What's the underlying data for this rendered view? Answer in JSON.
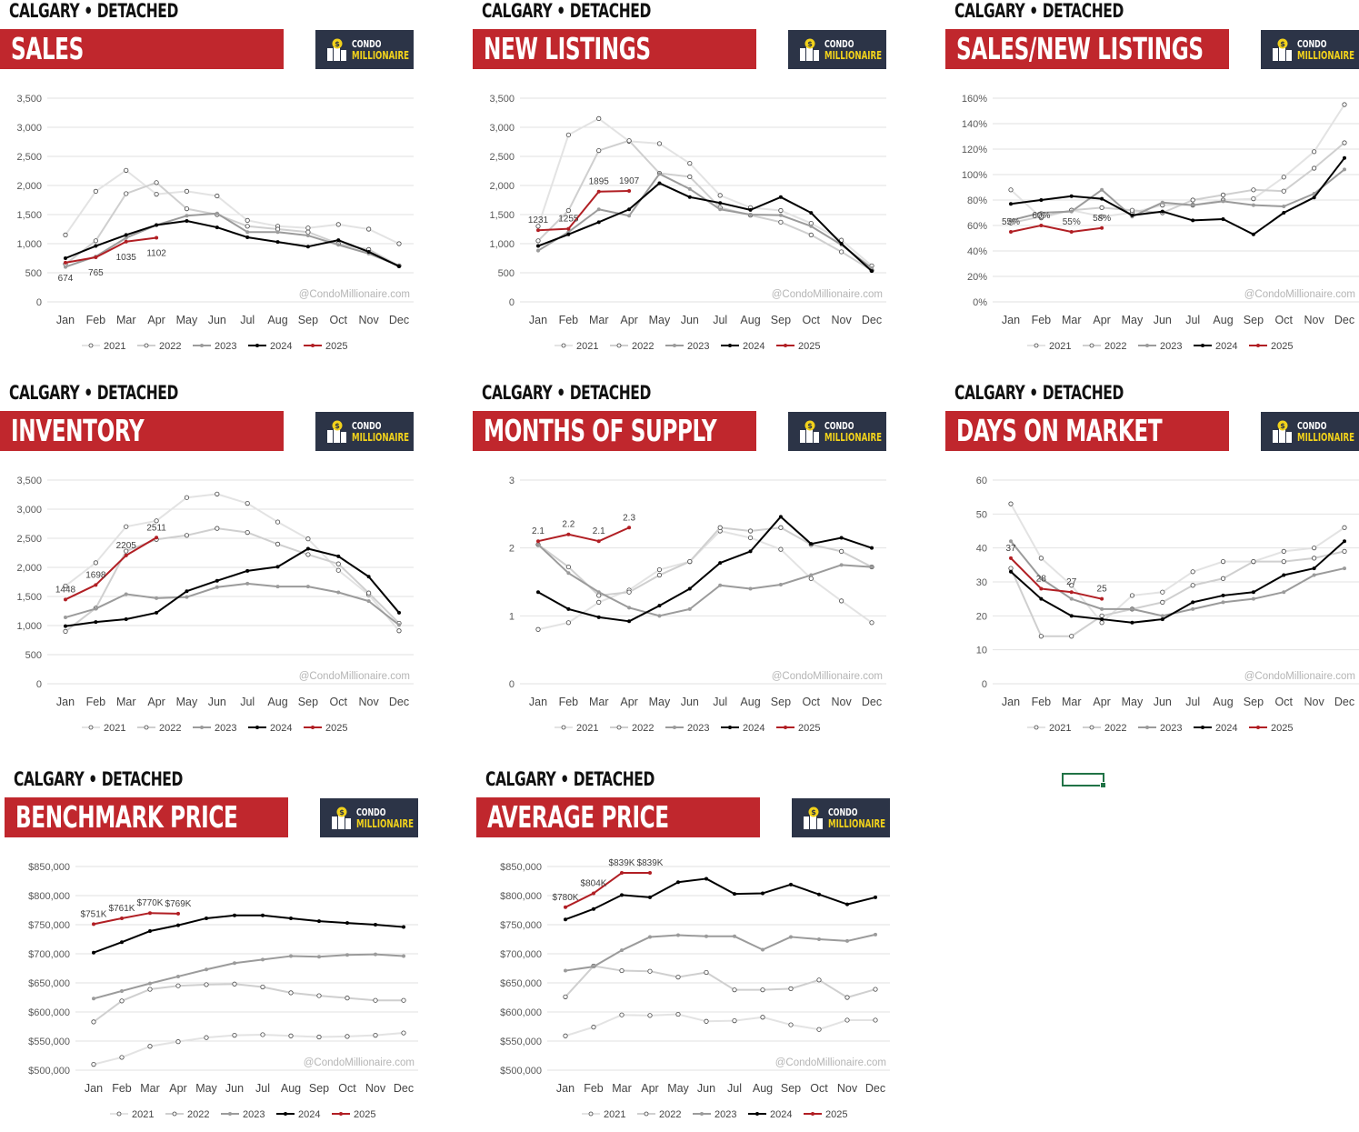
{
  "months": [
    "Jan",
    "Feb",
    "Mar",
    "Apr",
    "May",
    "Jun",
    "Jul",
    "Aug",
    "Sep",
    "Oct",
    "Nov",
    "Dec"
  ],
  "legend_years": [
    "2021",
    "2022",
    "2023",
    "2024",
    "2025"
  ],
  "watermark": "@CondoMillionaire.com",
  "logo": {
    "line1": "CONDO",
    "line2": "MILLIONAIRE"
  },
  "colors": {
    "banner": "#c0272d",
    "logo_bg": "#2c3447",
    "logo_accent": "#f2d21b",
    "y2021": "#e3e3e3",
    "y2022": "#cfcfcf",
    "y2023": "#9b9b9b",
    "y2024": "#000000",
    "y2025": "#b11f24"
  },
  "panels": [
    {
      "city": "CALGARY • DETACHED",
      "title": "SALES",
      "chart_data": {
        "type": "line",
        "ylim": [
          0,
          3500
        ],
        "yticks": [
          "0",
          "500",
          "1,000",
          "1,500",
          "2,000",
          "2,500",
          "3,000",
          "3,500"
        ],
        "series": [
          {
            "name": "2021",
            "values": [
              1150,
              1900,
              2260,
              1850,
              1900,
              1820,
              1400,
              1300,
              1270,
              1330,
              1250,
              1000
            ]
          },
          {
            "name": "2022",
            "values": [
              650,
              1050,
              1860,
              2050,
              1600,
              1500,
              1300,
              1250,
              1200,
              1000,
              900,
              620
            ]
          },
          {
            "name": "2023",
            "values": [
              600,
              780,
              1100,
              1320,
              1480,
              1520,
              1200,
              1200,
              1140,
              980,
              830,
              620
            ]
          },
          {
            "name": "2024",
            "values": [
              750,
              960,
              1150,
              1320,
              1390,
              1280,
              1110,
              1030,
              950,
              1060,
              860,
              610
            ]
          },
          {
            "name": "2025",
            "values": [
              674,
              765,
              1035,
              1102
            ],
            "labels": [
              "674",
              "765",
              "1035",
              "1102"
            ]
          }
        ]
      }
    },
    {
      "city": "CALGARY • DETACHED",
      "title": "NEW LISTINGS",
      "chart_data": {
        "type": "line",
        "ylim": [
          0,
          3500
        ],
        "yticks": [
          "0",
          "500",
          "1,000",
          "1,500",
          "2,000",
          "2,500",
          "3,000",
          "3,500"
        ],
        "series": [
          {
            "name": "2021",
            "values": [
              1300,
              2870,
              3150,
              2760,
              2720,
              2380,
              1830,
              1620,
              1570,
              1350,
              1060,
              620
            ]
          },
          {
            "name": "2022",
            "values": [
              1050,
              1570,
              2600,
              2770,
              2210,
              2150,
              1620,
              1490,
              1370,
              1150,
              860,
              540
            ]
          },
          {
            "name": "2023",
            "values": [
              880,
              1200,
              1590,
              1480,
              2200,
              1940,
              1590,
              1500,
              1490,
              1300,
              980,
              580
            ]
          },
          {
            "name": "2024",
            "values": [
              960,
              1160,
              1370,
              1590,
              2040,
              1800,
              1700,
              1580,
              1800,
              1530,
              1000,
              530
            ]
          },
          {
            "name": "2025",
            "values": [
              1231,
              1255,
              1895,
              1907
            ],
            "labels": [
              "1231",
              "1255",
              "1895",
              "1907"
            ]
          }
        ]
      }
    },
    {
      "city": "CALGARY • DETACHED",
      "title": "SALES/NEW LISTINGS",
      "chart_data": {
        "type": "line",
        "ylim": [
          0,
          160
        ],
        "yticks": [
          "0%",
          "20%",
          "40%",
          "60%",
          "80%",
          "100%",
          "120%",
          "140%",
          "160%"
        ],
        "series": [
          {
            "name": "2021",
            "values": [
              88,
              66,
              72,
              67,
              70,
              76,
              76,
              80,
              81,
              98,
              118,
              155
            ]
          },
          {
            "name": "2022",
            "values": [
              62,
              67,
              72,
              74,
              72,
              70,
              80,
              84,
              88,
              87,
              105,
              125
            ]
          },
          {
            "name": "2023",
            "values": [
              64,
              70,
              71,
              88,
              67,
              78,
              76,
              79,
              76,
              75,
              85,
              104
            ]
          },
          {
            "name": "2024",
            "values": [
              77,
              80,
              83,
              81,
              68,
              71,
              64,
              65,
              53,
              70,
              82,
              113
            ]
          },
          {
            "name": "2025",
            "values": [
              55,
              60,
              55,
              58
            ],
            "labels": [
              "55%",
              "60%",
              "55%",
              "58%"
            ]
          }
        ]
      }
    },
    {
      "city": "CALGARY • DETACHED",
      "title": "INVENTORY",
      "chart_data": {
        "type": "line",
        "ylim": [
          0,
          3500
        ],
        "yticks": [
          "0",
          "500",
          "1,000",
          "1,500",
          "2,000",
          "2,500",
          "3,000",
          "3,500"
        ],
        "series": [
          {
            "name": "2021",
            "values": [
              1680,
              2080,
              2700,
              2800,
              3200,
              3260,
              3100,
              2780,
              2490,
              1950,
              1530,
              910
            ]
          },
          {
            "name": "2022",
            "values": [
              900,
              1300,
              2280,
              2480,
              2550,
              2670,
              2600,
              2400,
              2220,
              2060,
              1560,
              1040
            ]
          },
          {
            "name": "2023",
            "values": [
              1140,
              1290,
              1540,
              1470,
              1490,
              1660,
              1720,
              1670,
              1670,
              1570,
              1420,
              1010
            ]
          },
          {
            "name": "2024",
            "values": [
              990,
              1060,
              1110,
              1220,
              1590,
              1770,
              1940,
              2010,
              2320,
              2190,
              1840,
              1220
            ]
          },
          {
            "name": "2025",
            "values": [
              1448,
              1698,
              2205,
              2511
            ],
            "labels": [
              "1448",
              "1698",
              "2205",
              "2511"
            ]
          }
        ]
      }
    },
    {
      "city": "CALGARY • DETACHED",
      "title": "MONTHS OF SUPPLY",
      "chart_data": {
        "type": "line",
        "ylim": [
          0,
          3
        ],
        "yticks": [
          "0",
          "1",
          "2",
          "3"
        ],
        "series": [
          {
            "name": "2021",
            "values": [
              0.8,
              0.9,
              1.2,
              1.38,
              1.68,
              1.8,
              2.25,
              2.15,
              1.98,
              1.55,
              1.22,
              0.9
            ]
          },
          {
            "name": "2022",
            "values": [
              2.05,
              1.72,
              1.3,
              1.35,
              1.6,
              1.8,
              2.3,
              2.25,
              2.3,
              2.05,
              1.95,
              1.72
            ]
          },
          {
            "name": "2023",
            "values": [
              2.05,
              1.63,
              1.35,
              1.12,
              1.0,
              1.1,
              1.45,
              1.4,
              1.46,
              1.6,
              1.75,
              1.72
            ]
          },
          {
            "name": "2024",
            "values": [
              1.35,
              1.1,
              0.98,
              0.92,
              1.15,
              1.4,
              1.78,
              1.95,
              2.46,
              2.06,
              2.15,
              2.0
            ]
          },
          {
            "name": "2025",
            "values": [
              2.1,
              2.2,
              2.1,
              2.3
            ],
            "labels": [
              "2.1",
              "2.2",
              "2.1",
              "2.3"
            ]
          }
        ]
      }
    },
    {
      "city": "CALGARY • DETACHED",
      "title": "DAYS ON MARKET",
      "chart_data": {
        "type": "line",
        "ylim": [
          0,
          60
        ],
        "yticks": [
          "0",
          "10",
          "20",
          "30",
          "40",
          "50",
          "60"
        ],
        "series": [
          {
            "name": "2021",
            "values": [
              53,
              37,
              29,
              18,
              26,
              27,
              33,
              36,
              36,
              39,
              40,
              46
            ]
          },
          {
            "name": "2022",
            "values": [
              34,
              14,
              14,
              20,
              22,
              24,
              29,
              31,
              36,
              36,
              37,
              39
            ]
          },
          {
            "name": "2023",
            "values": [
              42,
              31,
              25,
              22,
              22,
              20,
              22,
              24,
              25,
              27,
              32,
              34
            ]
          },
          {
            "name": "2024",
            "values": [
              33,
              25,
              20,
              19,
              18,
              19,
              24,
              26,
              27,
              32,
              34,
              42
            ]
          },
          {
            "name": "2025",
            "values": [
              37,
              28,
              27,
              25
            ],
            "labels": [
              "37",
              "28",
              "27",
              "25"
            ]
          }
        ]
      }
    },
    {
      "city": "CALGARY • DETACHED",
      "title": "BENCHMARK PRICE",
      "chart_data": {
        "type": "line",
        "ylim": [
          500000,
          850000
        ],
        "yticks": [
          "$500,000",
          "$550,000",
          "$600,000",
          "$650,000",
          "$700,000",
          "$750,000",
          "$800,000",
          "$850,000"
        ],
        "series": [
          {
            "name": "2021",
            "values": [
              510000,
              522000,
              541000,
              549000,
              556000,
              560000,
              561000,
              559000,
              557000,
              558000,
              560000,
              564000
            ]
          },
          {
            "name": "2022",
            "values": [
              583000,
              619000,
              639000,
              645000,
              647000,
              648000,
              643000,
              633000,
              628000,
              624000,
              620000,
              620000
            ]
          },
          {
            "name": "2023",
            "values": [
              623000,
              636000,
              649000,
              661000,
              673000,
              684000,
              690000,
              696000,
              695000,
              698000,
              699000,
              696000
            ]
          },
          {
            "name": "2024",
            "values": [
              702000,
              720000,
              739000,
              749000,
              761000,
              766000,
              766000,
              761000,
              756000,
              753000,
              750000,
              746000
            ]
          },
          {
            "name": "2025",
            "values": [
              751000,
              761000,
              770000,
              769000
            ],
            "labels": [
              "$751K",
              "$761K",
              "$770K",
              "$769K"
            ]
          }
        ]
      }
    },
    {
      "city": "CALGARY • DETACHED",
      "title": "AVERAGE PRICE",
      "chart_data": {
        "type": "line",
        "ylim": [
          500000,
          850000
        ],
        "yticks": [
          "$500,000",
          "$550,000",
          "$600,000",
          "$650,000",
          "$700,000",
          "$750,000",
          "$800,000",
          "$850,000"
        ],
        "series": [
          {
            "name": "2021",
            "values": [
              559000,
              574000,
              595000,
              594000,
              596000,
              584000,
              585000,
              591000,
              578000,
              570000,
              586000,
              586000
            ]
          },
          {
            "name": "2022",
            "values": [
              626000,
              679000,
              671000,
              670000,
              660000,
              668000,
              638000,
              638000,
              640000,
              655000,
              625000,
              639000
            ]
          },
          {
            "name": "2023",
            "values": [
              671000,
              678000,
              706000,
              729000,
              732000,
              730000,
              730000,
              707000,
              729000,
              725000,
              722000,
              733000
            ]
          },
          {
            "name": "2024",
            "values": [
              759000,
              777000,
              801000,
              797000,
              823000,
              829000,
              803000,
              804000,
              819000,
              802000,
              785000,
              797000
            ]
          },
          {
            "name": "2025",
            "values": [
              780000,
              804000,
              839000,
              839000
            ],
            "labels": [
              "$780K",
              "$804K",
              "$839K",
              "$839K"
            ]
          }
        ]
      }
    }
  ]
}
